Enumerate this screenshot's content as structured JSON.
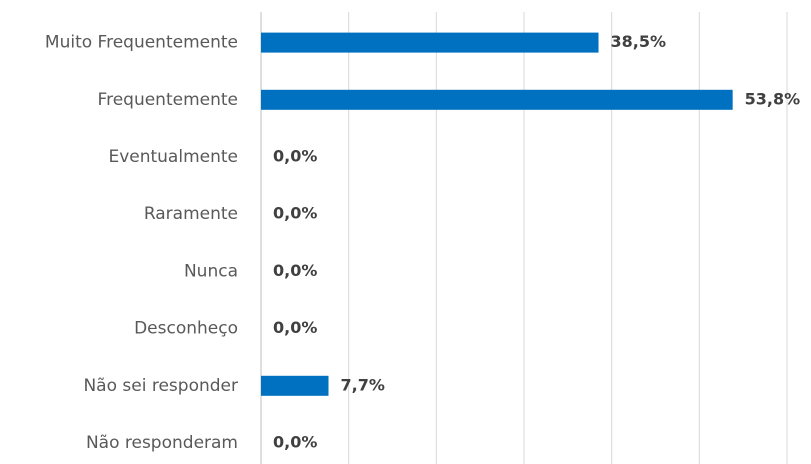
{
  "chart_data": {
    "type": "bar",
    "orientation": "horizontal",
    "categories": [
      "Muito Frequentemente",
      "Frequentemente",
      "Eventualmente",
      "Raramente",
      "Nunca",
      "Desconheço",
      "Não sei responder",
      "Não responderam"
    ],
    "values": [
      38.5,
      53.8,
      0,
      0,
      0,
      0,
      7.7,
      0
    ],
    "value_labels": [
      "38,5%",
      "53,8%",
      "0,0%",
      "0,0%",
      "0,0%",
      "0,0%",
      "7,7%",
      "0,0%"
    ],
    "color": "#0070c0",
    "xlim": [
      0,
      60
    ],
    "xticks": [
      0,
      10,
      20,
      30,
      40,
      50,
      60
    ],
    "grid": true
  }
}
